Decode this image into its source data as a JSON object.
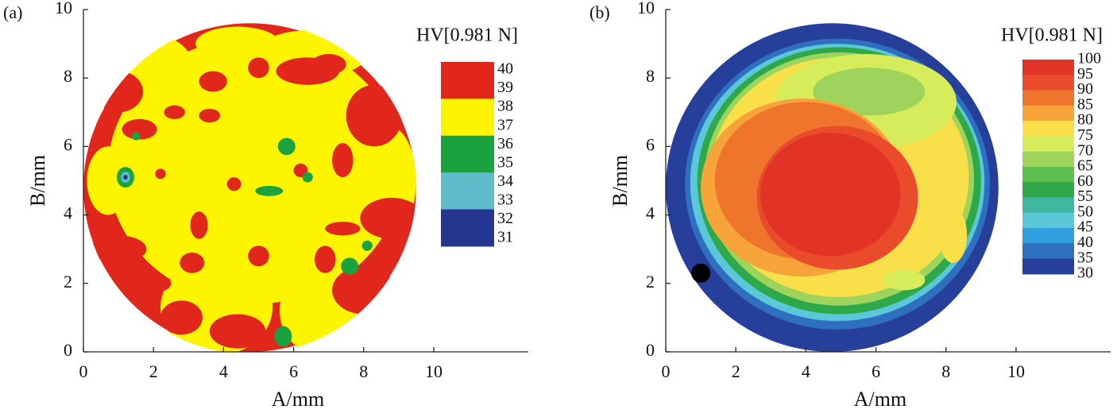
{
  "chart_data": [
    {
      "type": "contour",
      "panel_label": "(a)",
      "colorbar_title": "HV[0.981 N]",
      "xlabel": "A/mm",
      "ylabel": "B/mm",
      "xlim": [
        0,
        12.7
      ],
      "ylim": [
        0,
        10
      ],
      "xticks": [
        0,
        2,
        4,
        6,
        8,
        10
      ],
      "yticks": [
        0,
        2,
        4,
        6,
        8,
        10
      ],
      "colorbar_ticks": [
        40,
        39,
        38,
        37,
        36,
        35,
        34,
        33,
        32,
        31
      ],
      "colorbar_colors": [
        "#e1261c",
        "#fdf500",
        "#1aa23e",
        "#5fbccb",
        "#24368f"
      ]
    },
    {
      "type": "contour",
      "panel_label": "(b)",
      "colorbar_title": "HV[0.981 N]",
      "xlabel": "A/mm",
      "ylabel": "B/mm",
      "xlim": [
        0,
        12.7
      ],
      "ylim": [
        0,
        10
      ],
      "xticks": [
        0,
        2,
        4,
        6,
        8,
        10
      ],
      "yticks": [
        0,
        2,
        4,
        6,
        8,
        10
      ],
      "colorbar_ticks": [
        100,
        95,
        90,
        85,
        80,
        75,
        70,
        65,
        60,
        55,
        50,
        45,
        40,
        35,
        30
      ],
      "colorbar_colors": [
        "#e33327",
        "#ea4c2b",
        "#f0752c",
        "#f6a43a",
        "#f9e04a",
        "#d7ec5a",
        "#9fd45c",
        "#5cbf4e",
        "#2fa84a",
        "#3fb6a0",
        "#5ac8d8",
        "#2f9fe0",
        "#2f6fc0",
        "#263f9a"
      ]
    }
  ]
}
